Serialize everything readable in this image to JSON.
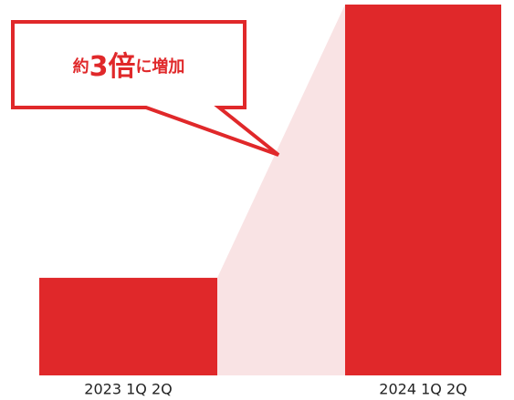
{
  "chart_data": {
    "type": "bar",
    "annotation": [
      "約",
      "3倍",
      "に増加"
    ],
    "categories": [
      "2023 1Q 2Q",
      "2024 1Q 2Q"
    ],
    "values": [
      1,
      3.8
    ],
    "color": "#e0282a",
    "ylim": [
      0,
      3.8
    ]
  }
}
